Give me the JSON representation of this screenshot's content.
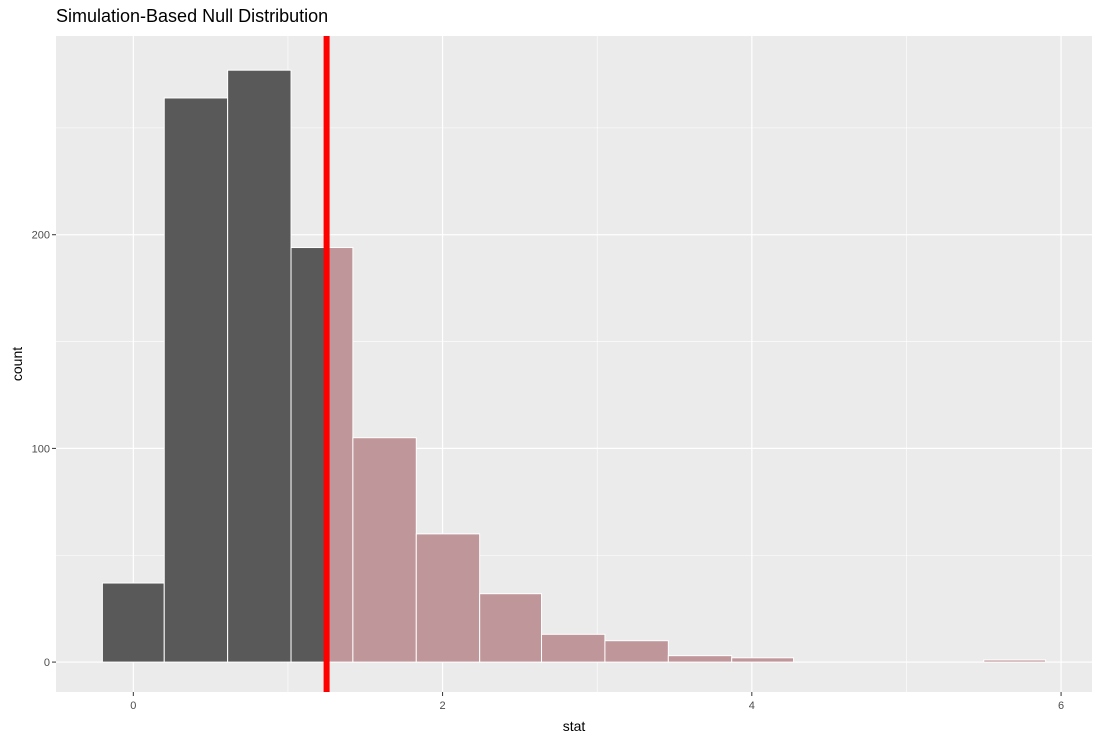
{
  "chart_data": {
    "type": "bar",
    "title": "Simulation-Based Null Distribution",
    "xlabel": "stat",
    "ylabel": "count",
    "xlim": [
      -0.5,
      6.2
    ],
    "ylim": [
      -14,
      293
    ],
    "x_ticks": [
      0,
      2,
      4,
      6
    ],
    "y_ticks": [
      0,
      100,
      200
    ],
    "grid": true,
    "bins": [
      {
        "x0": -0.2,
        "x1": 0.2,
        "count": 37,
        "shaded": false
      },
      {
        "x0": 0.2,
        "x1": 0.61,
        "count": 264,
        "shaded": false
      },
      {
        "x0": 0.61,
        "x1": 1.02,
        "count": 277,
        "shaded": false
      },
      {
        "x0": 1.02,
        "x1": 1.25,
        "count": 194,
        "shaded": false
      },
      {
        "x0": 1.25,
        "x1": 1.42,
        "count": 194,
        "shaded": true
      },
      {
        "x0": 1.42,
        "x1": 1.83,
        "count": 105,
        "shaded": true
      },
      {
        "x0": 1.83,
        "x1": 2.24,
        "count": 60,
        "shaded": true
      },
      {
        "x0": 2.24,
        "x1": 2.64,
        "count": 32,
        "shaded": true
      },
      {
        "x0": 2.64,
        "x1": 3.05,
        "count": 13,
        "shaded": true
      },
      {
        "x0": 3.05,
        "x1": 3.46,
        "count": 10,
        "shaded": true
      },
      {
        "x0": 3.46,
        "x1": 3.87,
        "count": 3,
        "shaded": true
      },
      {
        "x0": 3.87,
        "x1": 4.27,
        "count": 2,
        "shaded": true
      },
      {
        "x0": 5.5,
        "x1": 5.9,
        "count": 1,
        "shaded": true
      }
    ],
    "observed_stat": 1.25,
    "colors": {
      "panel_bg": "#ebebeb",
      "grid": "#ffffff",
      "bar_fill": "#595959",
      "shaded_fill": "#bf969a",
      "observed_line": "#ff0000"
    }
  }
}
